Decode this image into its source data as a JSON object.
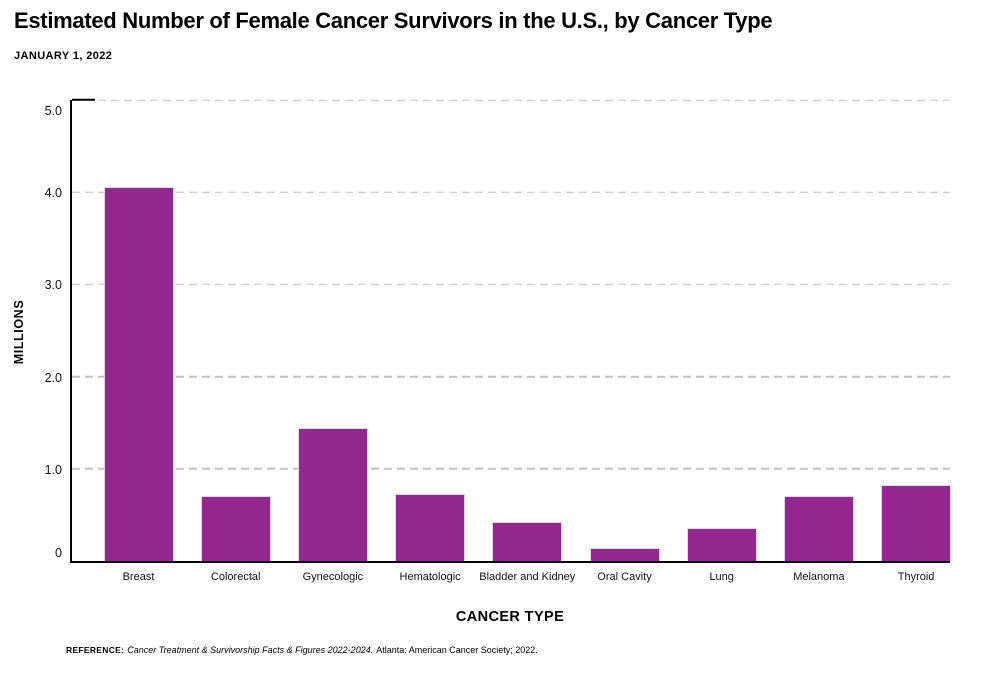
{
  "header": {
    "title": "Estimated Number of Female Cancer Survivors in the U.S., by Cancer Type",
    "date": "JANUARY 1, 2022"
  },
  "chart_data": {
    "type": "bar",
    "title": "Estimated Number of Female Cancer Survivors in the U.S., by Cancer Type",
    "subtitle": "JANUARY 1, 2022",
    "categories": [
      "Breast",
      "Colorectal",
      "Gynecologic",
      "Hematologic",
      "Bladder and Kidney",
      "Oral Cavity",
      "Lung",
      "Melanoma",
      "Thyroid"
    ],
    "values": [
      4.06,
      0.71,
      1.44,
      0.73,
      0.42,
      0.14,
      0.36,
      0.71,
      0.82
    ],
    "xlabel": "CANCER TYPE",
    "ylabel": "MILLIONS",
    "ylim": [
      0,
      5
    ],
    "yticks": [
      {
        "value": 5,
        "label": "5.0"
      },
      {
        "value": 4,
        "label": "4.0"
      },
      {
        "value": 3,
        "label": "3.0"
      },
      {
        "value": 2,
        "label": "2.0"
      },
      {
        "value": 1,
        "label": "1.0"
      },
      {
        "value": 0,
        "label": "0"
      }
    ],
    "grid": "horizontal-dashed",
    "legend": "none"
  },
  "reference": {
    "label": "REFERENCE:",
    "source_italic": "Cancer Treatment & Survivorship Facts & Figures 2022-2024.",
    "source_rest": "Atlanta: American Cancer Society; 2022."
  },
  "colors": {
    "bar": "#93278F",
    "bar_edge": "#e8d4e8",
    "gridline": "#c2c2c2",
    "axis": "#000000",
    "background": "#ffffff"
  }
}
